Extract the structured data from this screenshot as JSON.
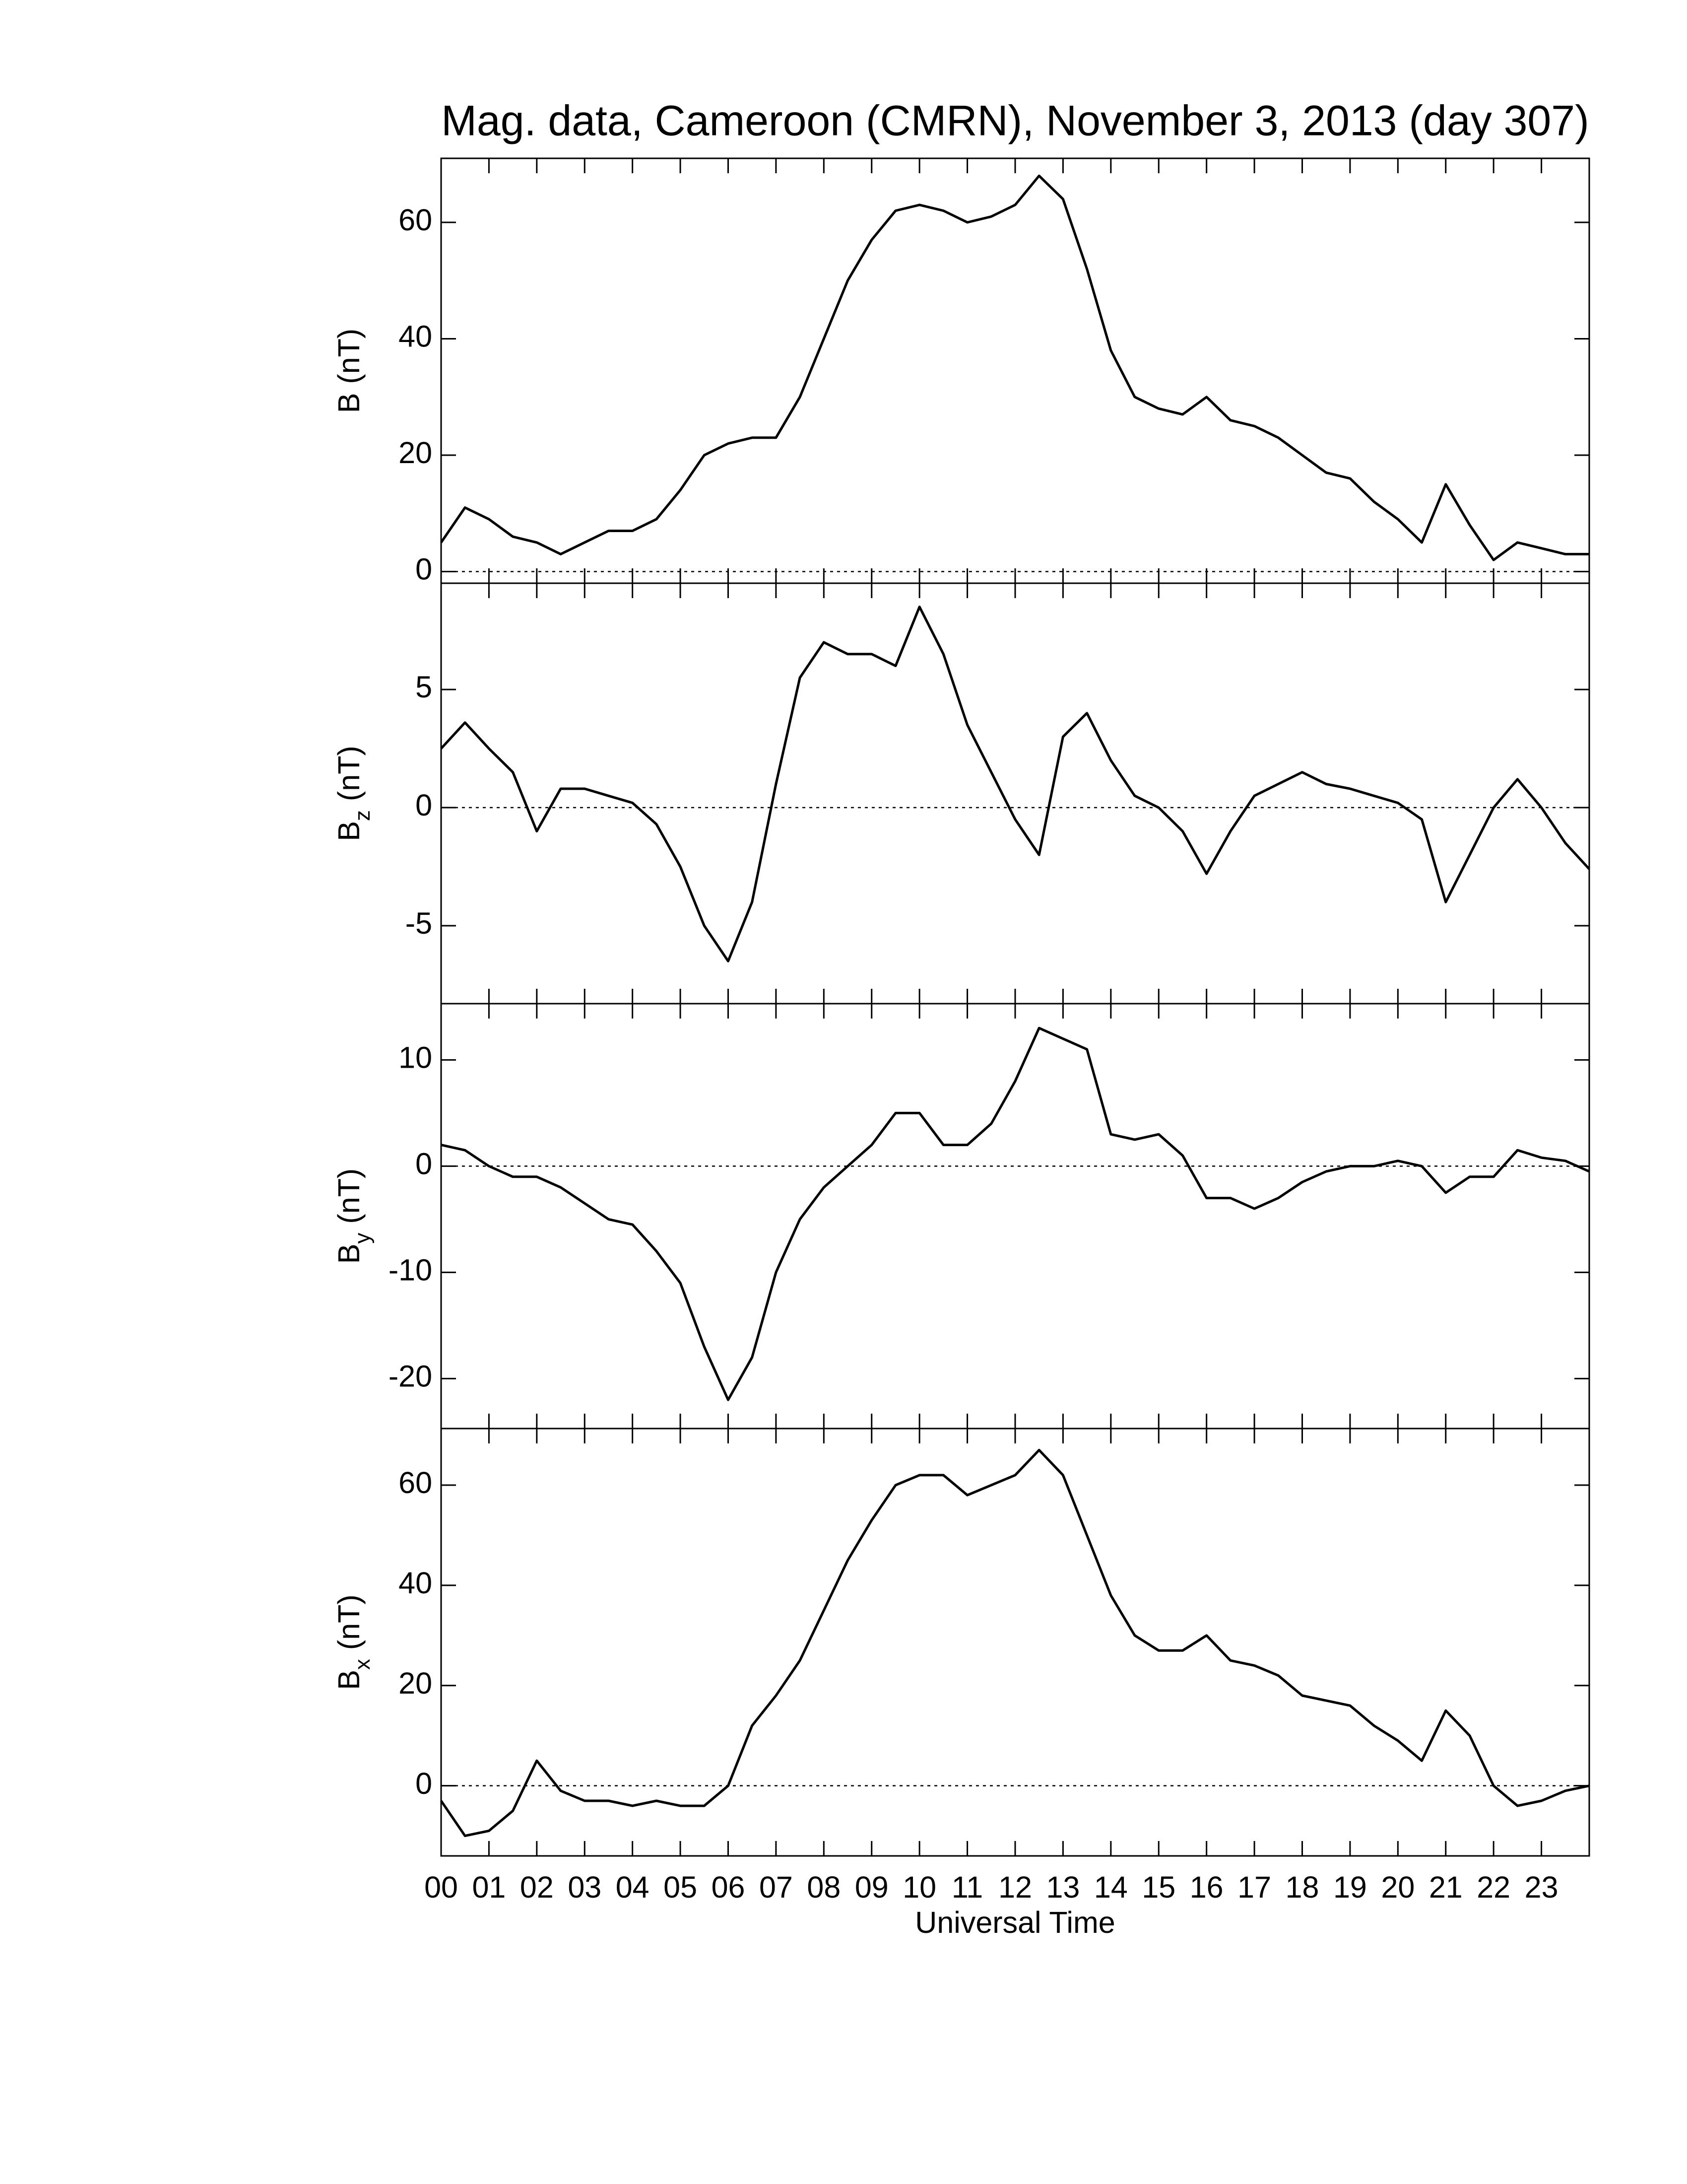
{
  "chart_data": [
    {
      "type": "line",
      "title": "Mag. data, Cameroon (CMRN), November 3, 2013 (day 307)",
      "ylabel": "B",
      "ylabel_unit": "(nT)",
      "xlim": [
        0,
        24
      ],
      "ylim": [
        -2,
        71
      ],
      "yticks": [
        0,
        20,
        40,
        60
      ],
      "zero_line": true,
      "series": [
        {
          "color": "#000000",
          "x": [
            0,
            0.5,
            1,
            1.5,
            2,
            2.5,
            3,
            3.5,
            4,
            4.5,
            5,
            5.5,
            6,
            6.5,
            7,
            7.5,
            8,
            8.5,
            9,
            9.5,
            10,
            10.5,
            11,
            11.5,
            12,
            12.5,
            13,
            13.5,
            14,
            14.5,
            15,
            15.5,
            16,
            16.5,
            17,
            17.5,
            18,
            18.5,
            19,
            19.5,
            20,
            20.5,
            21,
            21.5,
            22,
            22.5,
            23,
            23.5,
            24
          ],
          "values": [
            5,
            11,
            9,
            6,
            5,
            3,
            5,
            7,
            7,
            9,
            14,
            20,
            22,
            23,
            23,
            30,
            40,
            50,
            57,
            62,
            63,
            62,
            60,
            61,
            63,
            68,
            64,
            52,
            38,
            30,
            28,
            27,
            30,
            26,
            25,
            23,
            20,
            17,
            16,
            12,
            9,
            5,
            15,
            8,
            2,
            5,
            4,
            3,
            3
          ]
        }
      ]
    },
    {
      "type": "line",
      "ylabel": "B",
      "ylabel_sub": "z",
      "ylabel_unit": "(nT)",
      "xlim": [
        0,
        24
      ],
      "ylim": [
        -8.3,
        9.5
      ],
      "yticks": [
        -5,
        0,
        5
      ],
      "zero_line": true,
      "series": [
        {
          "color": "#000000",
          "x": [
            0,
            0.5,
            1,
            1.5,
            2,
            2.5,
            3,
            3.5,
            4,
            4.5,
            5,
            5.5,
            6,
            6.5,
            7,
            7.5,
            8,
            8.5,
            9,
            9.5,
            10,
            10.5,
            11,
            11.5,
            12,
            12.5,
            13,
            13.5,
            14,
            14.5,
            15,
            15.5,
            16,
            16.5,
            17,
            17.5,
            18,
            18.5,
            19,
            19.5,
            20,
            20.5,
            21,
            21.5,
            22,
            22.5,
            23,
            23.5,
            24
          ],
          "values": [
            2.5,
            3.6,
            2.5,
            1.5,
            -1,
            0.8,
            0.8,
            0.5,
            0.2,
            -0.7,
            -2.5,
            -5,
            -6.5,
            -4,
            1,
            5.5,
            7,
            6.5,
            6.5,
            6,
            8.5,
            6.5,
            3.5,
            1.5,
            -0.5,
            -2,
            3,
            4,
            2,
            0.5,
            0,
            -1,
            -2.8,
            -1,
            0.5,
            1,
            1.5,
            1,
            0.8,
            0.5,
            0.2,
            -0.5,
            -4,
            -2,
            0,
            1.2,
            0,
            -1.5,
            -2.6
          ]
        }
      ]
    },
    {
      "type": "line",
      "ylabel": "B",
      "ylabel_sub": "y",
      "ylabel_unit": "(nT)",
      "xlim": [
        0,
        24
      ],
      "ylim": [
        -24.7,
        15.3
      ],
      "yticks": [
        -20,
        -10,
        0,
        10
      ],
      "zero_line": true,
      "series": [
        {
          "color": "#000000",
          "x": [
            0,
            0.5,
            1,
            1.5,
            2,
            2.5,
            3,
            3.5,
            4,
            4.5,
            5,
            5.5,
            6,
            6.5,
            7,
            7.5,
            8,
            8.5,
            9,
            9.5,
            10,
            10.5,
            11,
            11.5,
            12,
            12.5,
            13,
            13.5,
            14,
            14.5,
            15,
            15.5,
            16,
            16.5,
            17,
            17.5,
            18,
            18.5,
            19,
            19.5,
            20,
            20.5,
            21,
            21.5,
            22,
            22.5,
            23,
            23.5,
            24
          ],
          "values": [
            2,
            1.5,
            0,
            -1,
            -1,
            -2,
            -3.5,
            -5,
            -5.5,
            -8,
            -11,
            -17,
            -22,
            -18,
            -10,
            -5,
            -2,
            0,
            2,
            5,
            5,
            2,
            2,
            4,
            8,
            13,
            12,
            11,
            3,
            2.5,
            3,
            1,
            -3,
            -3,
            -4,
            -3,
            -1.5,
            -0.5,
            0,
            0,
            0.5,
            0,
            -2.5,
            -1,
            -1,
            1.5,
            0.8,
            0.5,
            -0.5
          ]
        }
      ]
    },
    {
      "type": "line",
      "ylabel": "B",
      "ylabel_sub": "x",
      "ylabel_unit": "(nT)",
      "xlabel": "Universal Time",
      "xlim": [
        0,
        24
      ],
      "ylim": [
        -14,
        71.3
      ],
      "yticks": [
        0,
        20,
        40,
        60
      ],
      "zero_line": true,
      "xticks": [
        {
          "value": 0,
          "label": "00"
        },
        {
          "value": 1,
          "label": "01"
        },
        {
          "value": 2,
          "label": "02"
        },
        {
          "value": 3,
          "label": "03"
        },
        {
          "value": 4,
          "label": "04"
        },
        {
          "value": 5,
          "label": "05"
        },
        {
          "value": 6,
          "label": "06"
        },
        {
          "value": 7,
          "label": "07"
        },
        {
          "value": 8,
          "label": "08"
        },
        {
          "value": 9,
          "label": "09"
        },
        {
          "value": 10,
          "label": "10"
        },
        {
          "value": 11,
          "label": "11"
        },
        {
          "value": 12,
          "label": "12"
        },
        {
          "value": 13,
          "label": "13"
        },
        {
          "value": 14,
          "label": "14"
        },
        {
          "value": 15,
          "label": "15"
        },
        {
          "value": 16,
          "label": "16"
        },
        {
          "value": 17,
          "label": "17"
        },
        {
          "value": 18,
          "label": "18"
        },
        {
          "value": 19,
          "label": "19"
        },
        {
          "value": 20,
          "label": "20"
        },
        {
          "value": 21,
          "label": "21"
        },
        {
          "value": 22,
          "label": "22"
        },
        {
          "value": 23,
          "label": "23"
        }
      ],
      "series": [
        {
          "color": "#000000",
          "x": [
            0,
            0.5,
            1,
            1.5,
            2,
            2.5,
            3,
            3.5,
            4,
            4.5,
            5,
            5.5,
            6,
            6.5,
            7,
            7.5,
            8,
            8.5,
            9,
            9.5,
            10,
            10.5,
            11,
            11.5,
            12,
            12.5,
            13,
            13.5,
            14,
            14.5,
            15,
            15.5,
            16,
            16.5,
            17,
            17.5,
            18,
            18.5,
            19,
            19.5,
            20,
            20.5,
            21,
            21.5,
            22,
            22.5,
            23,
            23.5,
            24
          ],
          "values": [
            -3,
            -10,
            -9,
            -5,
            5,
            -1,
            -3,
            -3,
            -4,
            -3,
            -4,
            -4,
            0,
            12,
            18,
            25,
            35,
            45,
            53,
            60,
            62,
            62,
            58,
            60,
            62,
            67,
            62,
            50,
            38,
            30,
            27,
            27,
            30,
            25,
            24,
            22,
            18,
            17,
            16,
            12,
            9,
            5,
            15,
            10,
            0,
            -4,
            -3,
            -1,
            0
          ]
        }
      ]
    }
  ]
}
